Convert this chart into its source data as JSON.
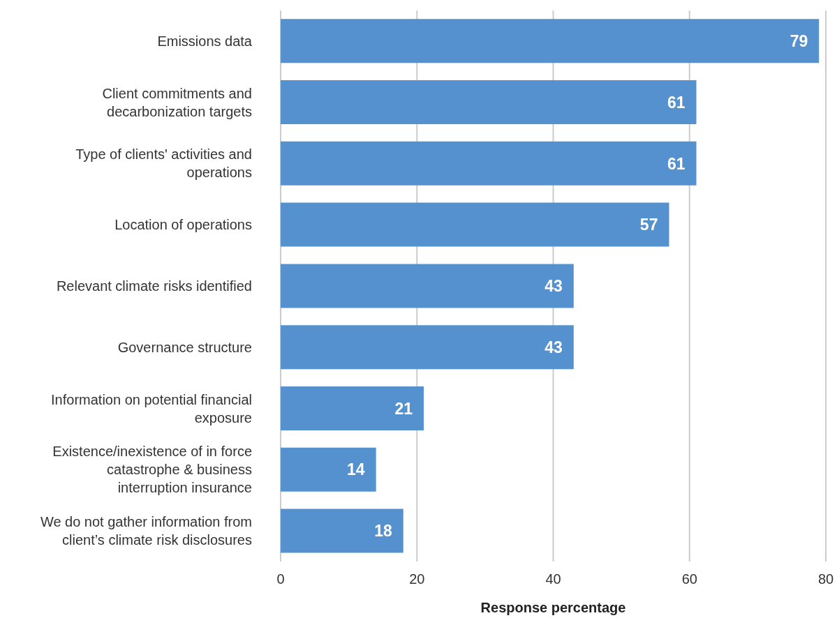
{
  "chart_data": {
    "type": "bar",
    "orientation": "horizontal",
    "xlabel": "Response percentage",
    "categories": [
      "Emissions data",
      "Client commitments and decarbonization targets",
      "Type of clients' activities and operations",
      "Location of operations",
      "Relevant climate risks identified",
      "Governance structure",
      "Information on potential financial exposure",
      "Existence/inexistence of in force catastrophe & business interruption insurance",
      "We do not gather information from client’s climate risk disclosures"
    ],
    "values": [
      79,
      61,
      61,
      57,
      43,
      43,
      21,
      14,
      18
    ],
    "color": "#5591cf",
    "xlim": [
      0,
      80
    ],
    "xticks": [
      0,
      20,
      40,
      60,
      80
    ],
    "grid": "x",
    "data_labels": true,
    "legend": false
  }
}
